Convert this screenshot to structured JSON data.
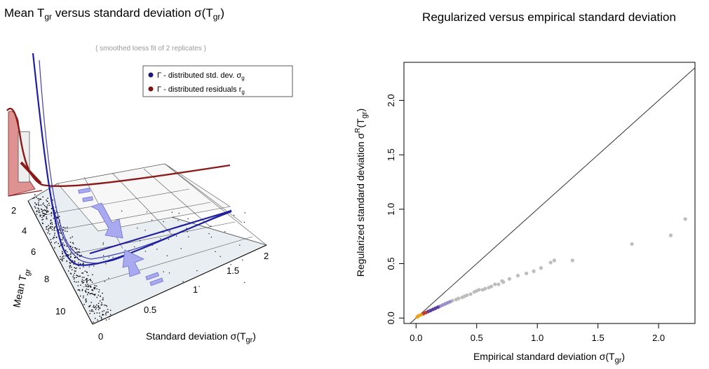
{
  "left_panel": {
    "title_parts": [
      "Mean  T",
      "gr",
      "  versus standard deviation  σ(T",
      "gr",
      ")"
    ],
    "subtitle": "( smoothed loess fit of  2  replicates )",
    "legend": [
      {
        "label": "Γ - distributed std. dev.  σ",
        "sub": "g",
        "color": "#1a1a6e"
      },
      {
        "label": "Γ - distributed residuals  r",
        "sub": "g",
        "color": "#7a1414"
      }
    ],
    "mean_axis": {
      "label": "Mean  T",
      "sub": "gr",
      "ticks": [
        "2",
        "4",
        "6",
        "8",
        "10"
      ]
    },
    "sd_axis": {
      "label": "Standard deviation  σ(T",
      "sub": "gr",
      "suffix": ")",
      "ticks": [
        "0",
        "0.5",
        "1",
        "1.5",
        "2"
      ]
    },
    "colors": {
      "blue_curve": "#1f1fa0",
      "red_curve": "#8b1a1a",
      "red_fill": "#d98080",
      "arrow_fill": "#a9a9f0"
    }
  },
  "chart_data": {
    "type": "scatter",
    "title": "Regularized versus empirical standard deviation",
    "xlabel": "Empirical standard deviation  σ(T",
    "xlabel_sub": "gr",
    "xlabel_suffix": ")",
    "ylabel": "Regularized standard deviation  σ",
    "ylabel_sup": "R",
    "ylabel_tail": "(T",
    "ylabel_sub": "gr",
    "ylabel_suffix": ")",
    "xlim": [
      -0.1,
      2.3
    ],
    "ylim": [
      -0.05,
      2.35
    ],
    "xticks": [
      0,
      0.5,
      1,
      1.5,
      2
    ],
    "xtick_labels": [
      "0.0",
      "0.5",
      "1.0",
      "1.5",
      "2.0"
    ],
    "yticks": [
      0,
      0.5,
      1,
      1.5,
      2
    ],
    "ytick_labels": [
      "0.0",
      "0.5",
      "1.0",
      "1.5",
      "2.0"
    ],
    "reference_line": "y = x",
    "point_color": "#bdbdbd",
    "series": [
      {
        "points": [
          [
            2.22,
            0.91
          ],
          [
            2.1,
            0.76
          ],
          [
            1.78,
            0.68
          ],
          [
            1.29,
            0.53
          ],
          [
            1.14,
            0.53
          ],
          [
            1.11,
            0.51
          ],
          [
            1.03,
            0.46
          ],
          [
            0.97,
            0.43
          ],
          [
            0.91,
            0.41
          ],
          [
            0.84,
            0.39
          ],
          [
            0.77,
            0.36
          ],
          [
            0.72,
            0.33
          ],
          [
            0.71,
            0.34
          ],
          [
            0.68,
            0.31
          ],
          [
            0.65,
            0.31
          ],
          [
            0.62,
            0.29
          ],
          [
            0.6,
            0.28
          ],
          [
            0.57,
            0.27
          ],
          [
            0.55,
            0.26
          ],
          [
            0.52,
            0.26
          ],
          [
            0.5,
            0.25
          ],
          [
            0.48,
            0.24
          ],
          [
            0.45,
            0.22
          ],
          [
            0.42,
            0.21
          ],
          [
            0.4,
            0.2
          ],
          [
            0.38,
            0.19
          ],
          [
            0.35,
            0.18
          ],
          [
            0.33,
            0.17
          ],
          [
            0.3,
            0.16
          ],
          [
            0.28,
            0.15
          ],
          [
            0.26,
            0.14
          ],
          [
            0.24,
            0.13
          ],
          [
            0.22,
            0.12
          ],
          [
            0.2,
            0.11
          ],
          [
            0.18,
            0.1
          ],
          [
            0.16,
            0.09
          ],
          [
            0.14,
            0.08
          ],
          [
            0.12,
            0.07
          ],
          [
            0.1,
            0.06
          ],
          [
            0.08,
            0.05
          ],
          [
            0.06,
            0.04
          ],
          [
            0.04,
            0.03
          ],
          [
            0.02,
            0.02
          ],
          [
            0.01,
            0.01
          ]
        ]
      }
    ]
  }
}
